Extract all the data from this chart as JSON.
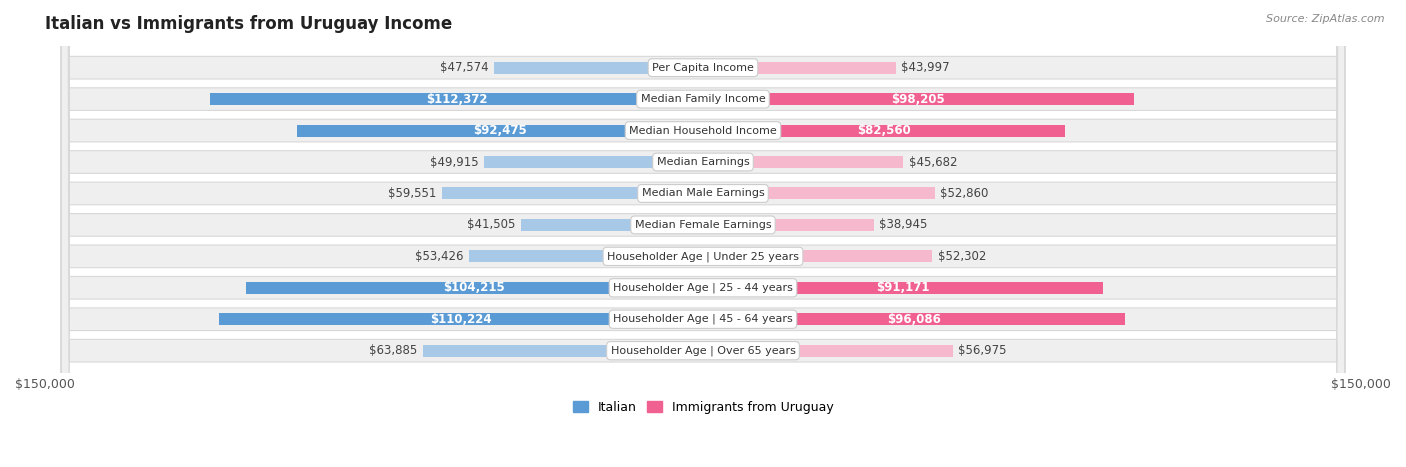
{
  "title": "Italian vs Immigrants from Uruguay Income",
  "source": "Source: ZipAtlas.com",
  "categories": [
    "Per Capita Income",
    "Median Family Income",
    "Median Household Income",
    "Median Earnings",
    "Median Male Earnings",
    "Median Female Earnings",
    "Householder Age | Under 25 years",
    "Householder Age | 25 - 44 years",
    "Householder Age | 45 - 64 years",
    "Householder Age | Over 65 years"
  ],
  "italian_values": [
    47574,
    112372,
    92475,
    49915,
    59551,
    41505,
    53426,
    104215,
    110224,
    63885
  ],
  "uruguay_values": [
    43997,
    98205,
    82560,
    45682,
    52860,
    38945,
    52302,
    91171,
    96086,
    56975
  ],
  "italian_labels": [
    "$47,574",
    "$112,372",
    "$92,475",
    "$49,915",
    "$59,551",
    "$41,505",
    "$53,426",
    "$104,215",
    "$110,224",
    "$63,885"
  ],
  "uruguay_labels": [
    "$43,997",
    "$98,205",
    "$82,560",
    "$45,682",
    "$52,860",
    "$38,945",
    "$52,302",
    "$91,171",
    "$96,086",
    "$56,975"
  ],
  "italian_color_light": "#a8c8e8",
  "italian_color_dark": "#5b9bd5",
  "uruguay_color_light": "#f5b8cc",
  "uruguay_color_dark": "#f06090",
  "max_value": 150000,
  "background_color": "#ffffff",
  "row_bg": "#efefef",
  "title_fontsize": 12,
  "label_fontsize": 8.5,
  "category_fontsize": 8,
  "legend_color_italian": "#5b9bd5",
  "legend_color_uruguay": "#f06090",
  "dark_threshold_italian": 65000,
  "dark_threshold_uruguay": 65000
}
